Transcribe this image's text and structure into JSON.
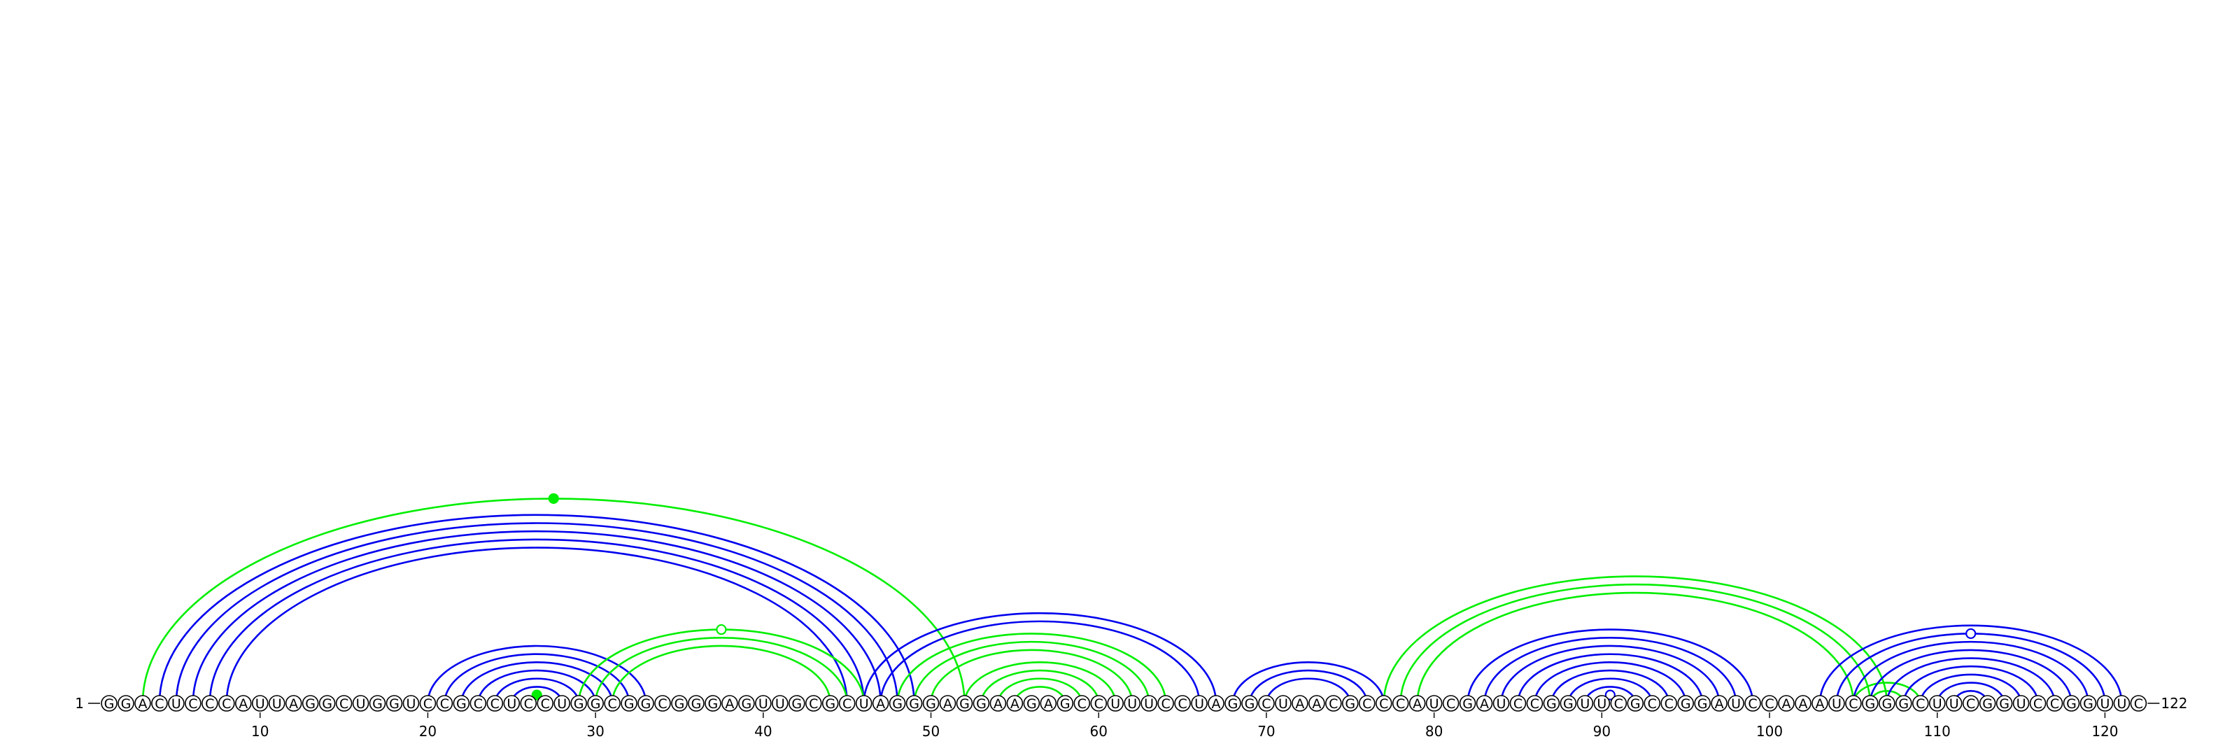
{
  "diagram": {
    "sequence": "GGACUCCCAUUAGGCUGGUCCGCCUCCUGGCGGCGGGAGUUGCGCUAGGGAGGAAGAGCCUUUCCUAGGCUAACGCCCAUCGAUCCGGUUCGCCGGAUCCAAAUCGGGCUUCGGUCCGGUUC",
    "start_label": "1",
    "end_label": "122",
    "tick_labels": [
      10,
      20,
      30,
      40,
      50,
      60,
      70,
      80,
      90,
      100,
      110,
      120
    ],
    "colors": {
      "primary": "#0000ee",
      "secondary": "#00ee00"
    },
    "arc_groups": [
      {
        "color": "primary",
        "pairs": [
          [
            4,
            49
          ],
          [
            5,
            48
          ],
          [
            6,
            47
          ],
          [
            7,
            46
          ],
          [
            8,
            45
          ]
        ]
      },
      {
        "color": "secondary",
        "pairs": [
          [
            3,
            52
          ]
        ],
        "marker": {
          "type": "filled",
          "level": 0
        }
      },
      {
        "color": "primary",
        "pairs": [
          [
            20,
            33
          ],
          [
            21,
            32
          ],
          [
            22,
            31
          ],
          [
            23,
            30
          ],
          [
            24,
            29
          ],
          [
            25,
            28
          ]
        ]
      },
      {
        "color": "secondary",
        "pairs": [
          [
            26,
            27
          ]
        ],
        "marker": {
          "type": "filled",
          "level": 0
        }
      },
      {
        "color": "secondary",
        "pairs": [
          [
            29,
            46
          ],
          [
            30,
            45
          ],
          [
            31,
            44
          ]
        ],
        "marker": {
          "type": "open",
          "level": 0
        }
      },
      {
        "color": "primary",
        "pairs": [
          [
            46,
            67
          ],
          [
            47,
            66
          ]
        ]
      },
      {
        "color": "secondary",
        "pairs": [
          [
            48,
            64
          ],
          [
            49,
            63
          ],
          [
            50,
            62
          ]
        ]
      },
      {
        "color": "secondary",
        "pairs": [
          [
            52,
            61
          ],
          [
            53,
            60
          ]
        ]
      },
      {
        "color": "secondary",
        "pairs": [
          [
            54,
            59
          ],
          [
            55,
            58
          ]
        ]
      },
      {
        "color": "primary",
        "pairs": [
          [
            68,
            77
          ],
          [
            69,
            76
          ],
          [
            70,
            75
          ]
        ]
      },
      {
        "color": "secondary",
        "pairs": [
          [
            77,
            107
          ],
          [
            78,
            106
          ],
          [
            79,
            105
          ]
        ]
      },
      {
        "color": "primary",
        "pairs": [
          [
            82,
            99
          ],
          [
            83,
            98
          ],
          [
            84,
            97
          ],
          [
            85,
            96
          ],
          [
            86,
            95
          ],
          [
            87,
            94
          ],
          [
            88,
            93
          ],
          [
            89,
            92
          ],
          [
            90,
            91
          ]
        ],
        "marker": {
          "type": "open",
          "level": 8
        }
      },
      {
        "color": "secondary",
        "pairs": [
          [
            105,
            109
          ],
          [
            106,
            108
          ]
        ]
      },
      {
        "color": "primary",
        "pairs": [
          [
            103,
            121
          ],
          [
            104,
            120
          ],
          [
            105,
            119
          ],
          [
            106,
            118
          ],
          [
            107,
            117
          ],
          [
            108,
            116
          ],
          [
            109,
            115
          ],
          [
            110,
            114
          ],
          [
            111,
            113
          ]
        ],
        "marker": {
          "type": "open",
          "level": 1
        }
      }
    ]
  }
}
